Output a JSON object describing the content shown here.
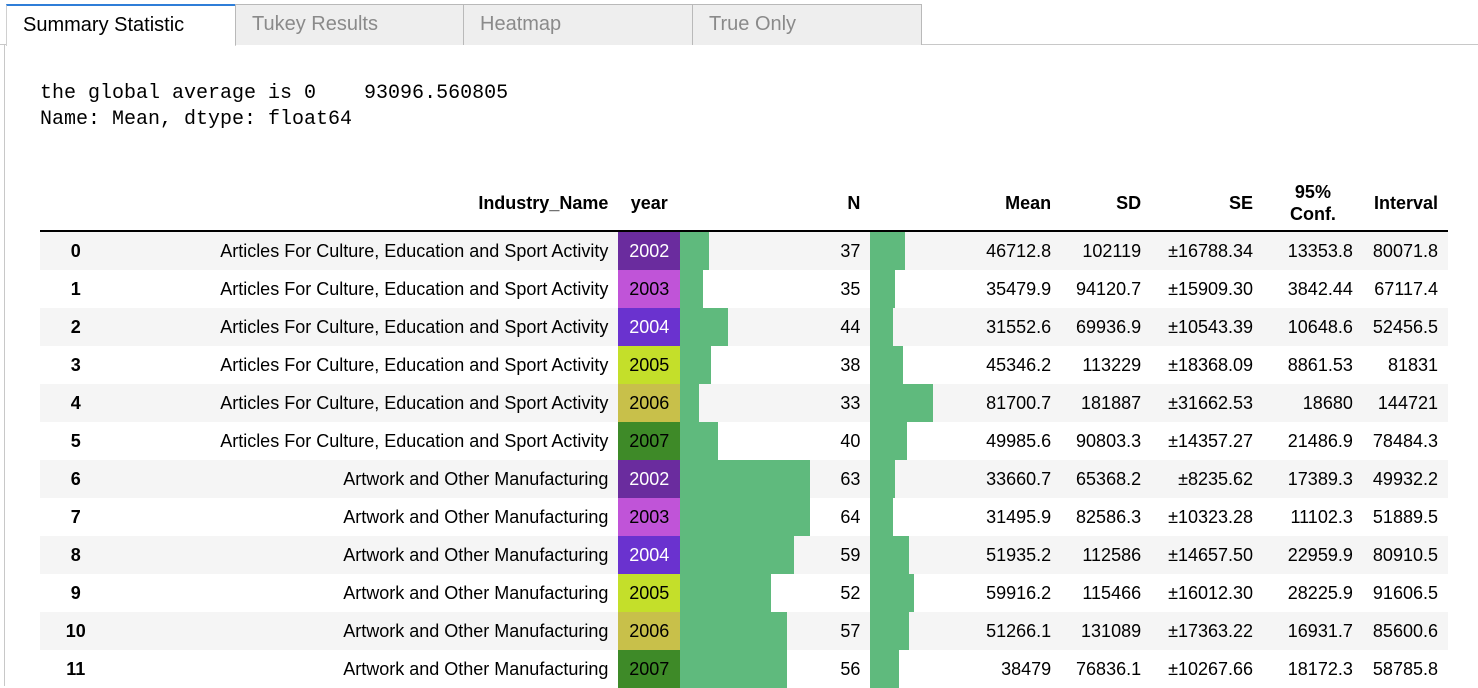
{
  "tabs": [
    {
      "label": "Summary Statistic",
      "active": true
    },
    {
      "label": "Tukey Results",
      "active": false
    },
    {
      "label": "Heatmap",
      "active": false
    },
    {
      "label": "True Only",
      "active": false
    }
  ],
  "output": {
    "line1": "the global average is 0    93096.560805",
    "line2": "Name: Mean, dtype: float64"
  },
  "table": {
    "headers": {
      "idx": "",
      "industry": "Industry_Name",
      "year": "year",
      "n": "N",
      "mean": "Mean",
      "sd": "SD",
      "se": "SE",
      "conf": "95% Conf.",
      "interval": "Interval"
    },
    "rows": [
      {
        "idx": "0",
        "industry": "Articles For Culture, Education and Sport Activity",
        "year": "2002",
        "year_color": "#6a2c9e",
        "year_text_color": "#ffffff",
        "year_bar": 0.15,
        "n": "37",
        "mean_bar": 0.18,
        "mean": "46712.8",
        "sd": "102119",
        "se": "±16788.34",
        "conf": "13353.8",
        "interval": "80071.8"
      },
      {
        "idx": "1",
        "industry": "Articles For Culture, Education and Sport Activity",
        "year": "2003",
        "year_color": "#c054d8",
        "year_text_color": "#000000",
        "year_bar": 0.12,
        "n": "35",
        "mean_bar": 0.13,
        "mean": "35479.9",
        "sd": "94120.7",
        "se": "±15909.30",
        "conf": "3842.44",
        "interval": "67117.4"
      },
      {
        "idx": "2",
        "industry": "Articles For Culture, Education and Sport Activity",
        "year": "2004",
        "year_color": "#6a32cf",
        "year_text_color": "#ffffff",
        "year_bar": 0.25,
        "n": "44",
        "mean_bar": 0.12,
        "mean": "31552.6",
        "sd": "69936.9",
        "se": "±10543.39",
        "conf": "10648.6",
        "interval": "52456.5"
      },
      {
        "idx": "3",
        "industry": "Articles For Culture, Education and Sport Activity",
        "year": "2005",
        "year_color": "#c4df2a",
        "year_text_color": "#000000",
        "year_bar": 0.16,
        "n": "38",
        "mean_bar": 0.17,
        "mean": "45346.2",
        "sd": "113229",
        "se": "±18368.09",
        "conf": "8861.53",
        "interval": "81831"
      },
      {
        "idx": "4",
        "industry": "Articles For Culture, Education and Sport Activity",
        "year": "2006",
        "year_color": "#c8c04a",
        "year_text_color": "#000000",
        "year_bar": 0.1,
        "n": "33",
        "mean_bar": 0.33,
        "mean": "81700.7",
        "sd": "181887",
        "se": "±31662.53",
        "conf": "18680",
        "interval": "144721"
      },
      {
        "idx": "5",
        "industry": "Articles For Culture, Education and Sport Activity",
        "year": "2007",
        "year_color": "#3e8a28",
        "year_text_color": "#000000",
        "year_bar": 0.2,
        "n": "40",
        "mean_bar": 0.19,
        "mean": "49985.6",
        "sd": "90803.3",
        "se": "±14357.27",
        "conf": "21486.9",
        "interval": "78484.3"
      },
      {
        "idx": "6",
        "industry": "Artwork and Other Manufacturing",
        "year": "2002",
        "year_color": "#6a2c9e",
        "year_text_color": "#ffffff",
        "year_bar": 0.68,
        "n": "63",
        "mean_bar": 0.13,
        "mean": "33660.7",
        "sd": "65368.2",
        "se": "±8235.62",
        "conf": "17389.3",
        "interval": "49932.2"
      },
      {
        "idx": "7",
        "industry": "Artwork and Other Manufacturing",
        "year": "2003",
        "year_color": "#c054d8",
        "year_text_color": "#000000",
        "year_bar": 0.68,
        "n": "64",
        "mean_bar": 0.12,
        "mean": "31495.9",
        "sd": "82586.3",
        "se": "±10323.28",
        "conf": "11102.3",
        "interval": "51889.5"
      },
      {
        "idx": "8",
        "industry": "Artwork and Other Manufacturing",
        "year": "2004",
        "year_color": "#6a32cf",
        "year_text_color": "#ffffff",
        "year_bar": 0.6,
        "n": "59",
        "mean_bar": 0.2,
        "mean": "51935.2",
        "sd": "112586",
        "se": "±14657.50",
        "conf": "22959.9",
        "interval": "80910.5"
      },
      {
        "idx": "9",
        "industry": "Artwork and Other Manufacturing",
        "year": "2005",
        "year_color": "#c4df2a",
        "year_text_color": "#000000",
        "year_bar": 0.48,
        "n": "52",
        "mean_bar": 0.23,
        "mean": "59916.2",
        "sd": "115466",
        "se": "±16012.30",
        "conf": "28225.9",
        "interval": "91606.5"
      },
      {
        "idx": "10",
        "industry": "Artwork and Other Manufacturing",
        "year": "2006",
        "year_color": "#c8c04a",
        "year_text_color": "#000000",
        "year_bar": 0.56,
        "n": "57",
        "mean_bar": 0.2,
        "mean": "51266.1",
        "sd": "131089",
        "se": "±17363.22",
        "conf": "16931.7",
        "interval": "85600.6"
      },
      {
        "idx": "11",
        "industry": "Artwork and Other Manufacturing",
        "year": "2007",
        "year_color": "#3e8a28",
        "year_text_color": "#000000",
        "year_bar": 0.56,
        "n": "56",
        "mean_bar": 0.15,
        "mean": "38479",
        "sd": "76836.1",
        "se": "±10267.66",
        "conf": "18172.3",
        "interval": "58785.8"
      }
    ]
  },
  "colors": {
    "bar": "#5fba7d",
    "active_tab_accent": "#2f7ed8"
  }
}
